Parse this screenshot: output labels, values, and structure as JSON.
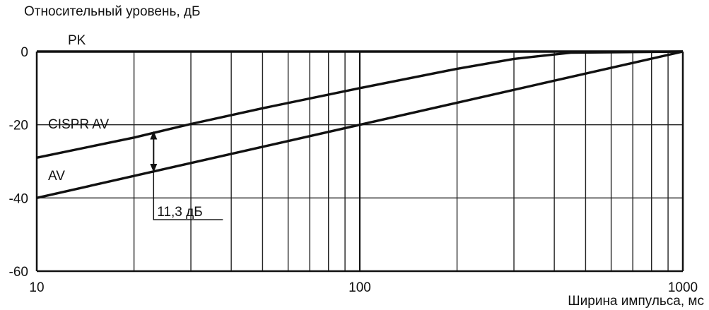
{
  "chart_data": {
    "type": "line",
    "ylabel": "Относительный уровень, дБ",
    "xlabel": "Ширина импульса, мс",
    "x_scale": "log",
    "xlim": [
      10,
      1000
    ],
    "ylim": [
      -60,
      0
    ],
    "x_ticks": [
      {
        "value": 10,
        "label": "10"
      },
      {
        "value": 100,
        "label": "100"
      },
      {
        "value": 1000,
        "label": "1000"
      }
    ],
    "y_ticks": [
      {
        "value": 0,
        "label": "0"
      },
      {
        "value": -20,
        "label": "-20"
      },
      {
        "value": -40,
        "label": "-40"
      },
      {
        "value": -60,
        "label": "-60"
      }
    ],
    "grid": true,
    "series": [
      {
        "name": "PK",
        "x": [
          10,
          1000
        ],
        "y": [
          0,
          0
        ]
      },
      {
        "name": "CISPR AV",
        "x": [
          10,
          20,
          30,
          50,
          100,
          200,
          300,
          450,
          1000
        ],
        "y": [
          -29,
          -23.5,
          -19.8,
          -15.5,
          -10,
          -4.7,
          -2,
          -0.3,
          0
        ]
      },
      {
        "name": "AV",
        "x": [
          10,
          100,
          1000
        ],
        "y": [
          -40,
          -20,
          0
        ]
      }
    ],
    "annotation": {
      "text": "11,3 дБ",
      "x": 23,
      "y_top": -21.7,
      "y_bottom": -33
    }
  }
}
